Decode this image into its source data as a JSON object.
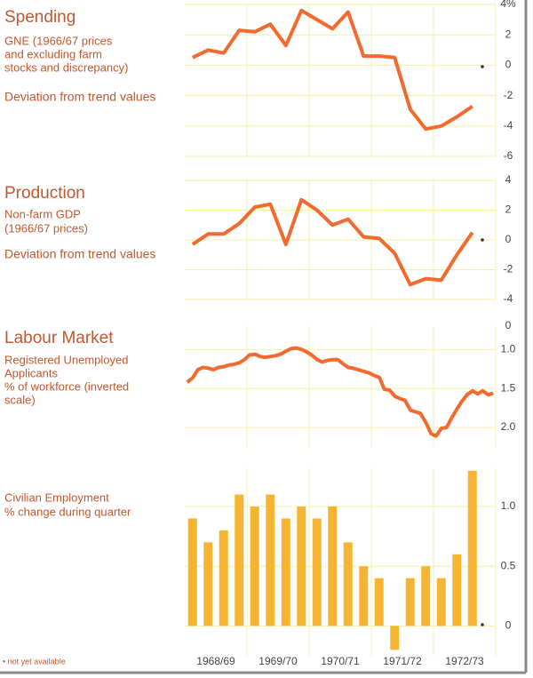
{
  "chart_data": [
    {
      "type": "line",
      "title": "Spending",
      "subtitle": [
        "GNE (1966/67 prices",
        "and excluding farm",
        "stocks and discrepancy)"
      ],
      "y_label": "Deviation from trend values",
      "color": "#f26a2e",
      "x": [
        1968.625,
        1968.875,
        1969.125,
        1969.375,
        1969.625,
        1969.875,
        1970.125,
        1970.375,
        1970.625,
        1970.875,
        1971.125,
        1971.375,
        1971.625,
        1971.875,
        1972.125,
        1972.375,
        1972.625,
        1972.875,
        1973.125
      ],
      "values": [
        0.5,
        1.0,
        0.8,
        2.3,
        2.2,
        2.7,
        1.3,
        3.6,
        3.0,
        2.4,
        3.5,
        0.6,
        0.6,
        0.5,
        -2.9,
        -4.2,
        -4.0,
        -3.4,
        -2.7
      ],
      "xlim": [
        1968.5,
        1973.5
      ],
      "ylim": [
        -6,
        4
      ],
      "yticks": [
        {
          "value": 4,
          "label": "4%"
        },
        2,
        0,
        -2,
        -4,
        -6
      ],
      "grid": true
    },
    {
      "type": "line",
      "title": "Production",
      "subtitle": [
        "Non-farm GDP",
        "(1966/67 prices)"
      ],
      "y_label": "Deviation from trend values",
      "color": "#f26a2e",
      "x": [
        1968.625,
        1968.875,
        1969.125,
        1969.375,
        1969.625,
        1969.875,
        1970.125,
        1970.375,
        1970.625,
        1970.875,
        1971.125,
        1971.375,
        1971.625,
        1971.875,
        1972.125,
        1972.375,
        1972.625,
        1972.875,
        1973.125
      ],
      "values": [
        -0.3,
        0.4,
        0.4,
        1.1,
        2.2,
        2.4,
        -0.3,
        2.7,
        2.0,
        1.0,
        1.4,
        0.2,
        0.1,
        -0.9,
        -3.0,
        -2.6,
        -2.7,
        -1.0,
        0.5
      ],
      "xlim": [
        1968.5,
        1973.5
      ],
      "ylim": [
        -4,
        4
      ],
      "yticks": [
        4,
        2,
        0,
        -2,
        -4
      ],
      "grid": true
    },
    {
      "type": "line",
      "title": "Labour Market",
      "subtitle": [
        "Registered Unemployed",
        "Applicants",
        "% of workforce (inverted",
        "scale)"
      ],
      "color": "#f26a2e",
      "inverted": true,
      "axis_break_label": "0",
      "x": [
        1968.54,
        1968.63,
        1968.71,
        1968.79,
        1968.88,
        1968.96,
        1969.04,
        1969.13,
        1969.21,
        1969.29,
        1969.38,
        1969.46,
        1969.54,
        1969.63,
        1969.71,
        1969.79,
        1969.88,
        1969.96,
        1970.04,
        1970.13,
        1970.21,
        1970.29,
        1970.38,
        1970.46,
        1970.54,
        1970.63,
        1970.71,
        1970.79,
        1970.88,
        1970.96,
        1971.04,
        1971.13,
        1971.21,
        1971.29,
        1971.38,
        1971.46,
        1971.54,
        1971.63,
        1971.71,
        1971.79,
        1971.88,
        1971.96,
        1972.04,
        1972.13,
        1972.21,
        1972.29,
        1972.38,
        1972.46,
        1972.54,
        1972.63,
        1972.71,
        1972.79,
        1972.88,
        1972.96,
        1973.04,
        1973.13,
        1973.21,
        1973.29,
        1973.38,
        1973.46
      ],
      "values": [
        1.42,
        1.36,
        1.26,
        1.23,
        1.24,
        1.26,
        1.23,
        1.22,
        1.2,
        1.19,
        1.17,
        1.13,
        1.07,
        1.06,
        1.09,
        1.1,
        1.09,
        1.08,
        1.06,
        1.02,
        0.99,
        0.98,
        1.0,
        1.03,
        1.07,
        1.13,
        1.16,
        1.14,
        1.13,
        1.13,
        1.18,
        1.23,
        1.24,
        1.26,
        1.28,
        1.3,
        1.33,
        1.36,
        1.51,
        1.52,
        1.6,
        1.63,
        1.65,
        1.78,
        1.8,
        1.82,
        1.94,
        2.08,
        2.11,
        2.01,
        2.0,
        1.88,
        1.76,
        1.66,
        1.58,
        1.53,
        1.57,
        1.53,
        1.58,
        1.56
      ],
      "xlim": [
        1968.5,
        1973.5
      ],
      "ylim": [
        0.7,
        2.25
      ],
      "yticks": [
        {
          "value": 1,
          "label": "1.0"
        },
        1.5,
        {
          "value": 2,
          "label": "2.0"
        }
      ],
      "grid": true
    },
    {
      "type": "bar",
      "title": "Civilian Employment",
      "subtitle": [
        "% change during quarter"
      ],
      "color": "#f5b532",
      "x": [
        1968.625,
        1968.875,
        1969.125,
        1969.375,
        1969.625,
        1969.875,
        1970.125,
        1970.375,
        1970.625,
        1970.875,
        1971.125,
        1971.375,
        1971.625,
        1971.875,
        1972.125,
        1972.375,
        1972.625,
        1972.875,
        1973.125
      ],
      "values": [
        0.9,
        0.7,
        0.8,
        1.1,
        1.0,
        1.1,
        0.9,
        1.0,
        0.9,
        1.0,
        0.7,
        0.5,
        0.4,
        -0.2,
        0.4,
        0.5,
        0.4,
        0.6,
        1.3
      ],
      "xlim": [
        1968.5,
        1973.5
      ],
      "ylim": [
        -0.25,
        1.32
      ],
      "yticks": [
        {
          "value": 1,
          "label": "1.0"
        },
        0.5,
        0
      ],
      "grid": true,
      "xticks": [
        {
          "value": 1969,
          "label": "1968/69"
        },
        {
          "value": 1970,
          "label": "1969/70"
        },
        {
          "value": 1971,
          "label": "1970/71"
        },
        {
          "value": 1972,
          "label": "1971/72"
        },
        {
          "value": 1973,
          "label": "1972/73"
        }
      ],
      "footnote": "• not yet available"
    }
  ]
}
